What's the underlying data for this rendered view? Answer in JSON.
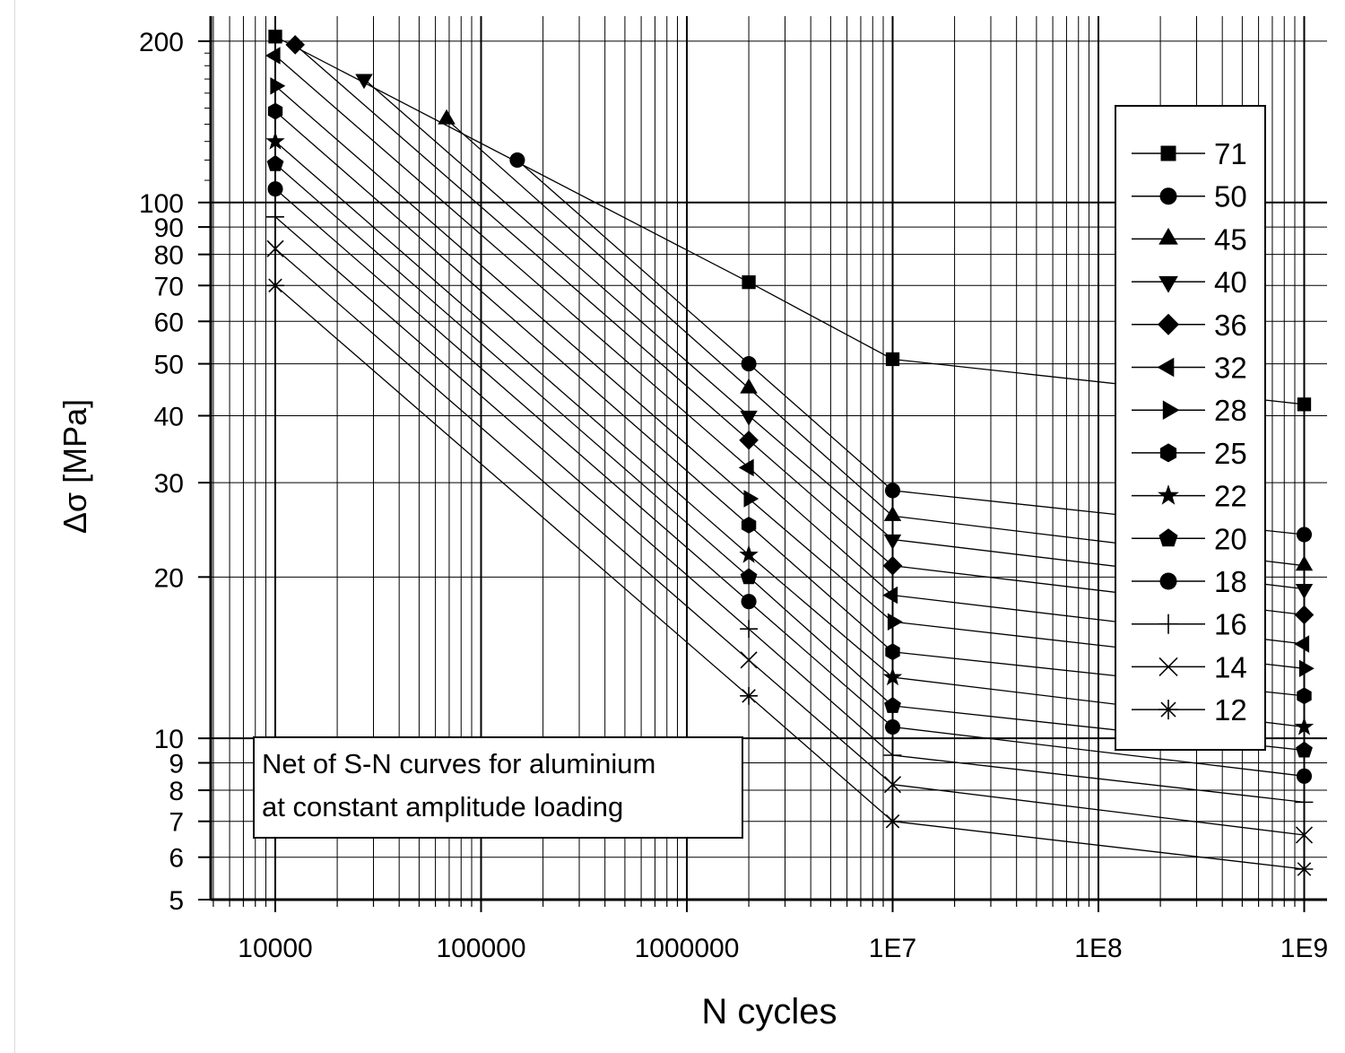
{
  "chart_data": {
    "type": "line",
    "title": "",
    "annotation": [
      "Net of S-N curves for aluminium",
      "at constant amplitude loading"
    ],
    "xlabel": "N cycles",
    "ylabel": "Δσ [MPa]",
    "x_scale": "log",
    "y_scale": "log",
    "xlim": [
      5000,
      1200000000
    ],
    "ylim": [
      5,
      230
    ],
    "x_ticks": [
      10000,
      100000,
      1000000,
      10000000,
      100000000,
      1000000000
    ],
    "x_tick_labels": [
      "10000",
      "100000",
      "1000000",
      "1E7",
      "1E8",
      "1E9"
    ],
    "y_ticks": [
      200,
      100,
      90,
      80,
      70,
      60,
      50,
      40,
      30,
      20,
      10,
      9,
      8,
      7,
      6,
      5
    ],
    "y_tick_labels": [
      "200",
      "100",
      "90",
      "80",
      "70",
      "60",
      "50",
      "40",
      "30",
      "20",
      "10",
      "9",
      "8",
      "7",
      "6",
      "5"
    ],
    "grid": true,
    "legend_position": "right",
    "series": [
      {
        "name": "71",
        "marker": "square",
        "points": [
          [
            10000,
            204
          ],
          [
            2000000,
            71
          ],
          [
            10000000,
            51
          ],
          [
            1000000000,
            42
          ]
        ]
      },
      {
        "name": "50",
        "marker": "circle",
        "points": [
          [
            150000,
            120
          ],
          [
            2000000,
            50
          ],
          [
            10000000,
            29
          ],
          [
            1000000000,
            24
          ]
        ]
      },
      {
        "name": "45",
        "marker": "triangle-up",
        "points": [
          [
            68000,
            143
          ],
          [
            2000000,
            45
          ],
          [
            10000000,
            26
          ],
          [
            1000000000,
            21
          ]
        ]
      },
      {
        "name": "40",
        "marker": "triangle-down",
        "points": [
          [
            27000,
            170
          ],
          [
            2000000,
            40
          ],
          [
            10000000,
            23.5
          ],
          [
            1000000000,
            19
          ]
        ]
      },
      {
        "name": "36",
        "marker": "diamond",
        "points": [
          [
            12500,
            197
          ],
          [
            2000000,
            36
          ],
          [
            10000000,
            21
          ],
          [
            1000000000,
            17
          ]
        ]
      },
      {
        "name": "32",
        "marker": "triangle-left",
        "points": [
          [
            10000,
            188
          ],
          [
            2000000,
            32
          ],
          [
            10000000,
            18.5
          ],
          [
            1000000000,
            15
          ]
        ]
      },
      {
        "name": "28",
        "marker": "triangle-right",
        "points": [
          [
            10000,
            165
          ],
          [
            2000000,
            28
          ],
          [
            10000000,
            16.5
          ],
          [
            1000000000,
            13.5
          ]
        ]
      },
      {
        "name": "25",
        "marker": "hexagon",
        "points": [
          [
            10000,
            148
          ],
          [
            2000000,
            25
          ],
          [
            10000000,
            14.5
          ],
          [
            1000000000,
            12
          ]
        ]
      },
      {
        "name": "22",
        "marker": "star",
        "points": [
          [
            10000,
            130
          ],
          [
            2000000,
            22
          ],
          [
            10000000,
            13
          ],
          [
            1000000000,
            10.5
          ]
        ]
      },
      {
        "name": "20",
        "marker": "pentagon",
        "points": [
          [
            10000,
            118
          ],
          [
            2000000,
            20
          ],
          [
            10000000,
            11.5
          ],
          [
            1000000000,
            9.5
          ]
        ]
      },
      {
        "name": "18",
        "marker": "circle",
        "points": [
          [
            10000,
            106
          ],
          [
            2000000,
            18
          ],
          [
            10000000,
            10.5
          ],
          [
            1000000000,
            8.5
          ]
        ]
      },
      {
        "name": "16",
        "marker": "plus",
        "points": [
          [
            10000,
            94
          ],
          [
            2000000,
            16
          ],
          [
            10000000,
            9.3
          ],
          [
            1000000000,
            7.6
          ]
        ]
      },
      {
        "name": "14",
        "marker": "x",
        "points": [
          [
            10000,
            82
          ],
          [
            2000000,
            14
          ],
          [
            10000000,
            8.2
          ],
          [
            1000000000,
            6.6
          ]
        ]
      },
      {
        "name": "12",
        "marker": "asterisk",
        "points": [
          [
            10000,
            70
          ],
          [
            2000000,
            12
          ],
          [
            10000000,
            7
          ],
          [
            1000000000,
            5.7
          ]
        ]
      }
    ]
  }
}
